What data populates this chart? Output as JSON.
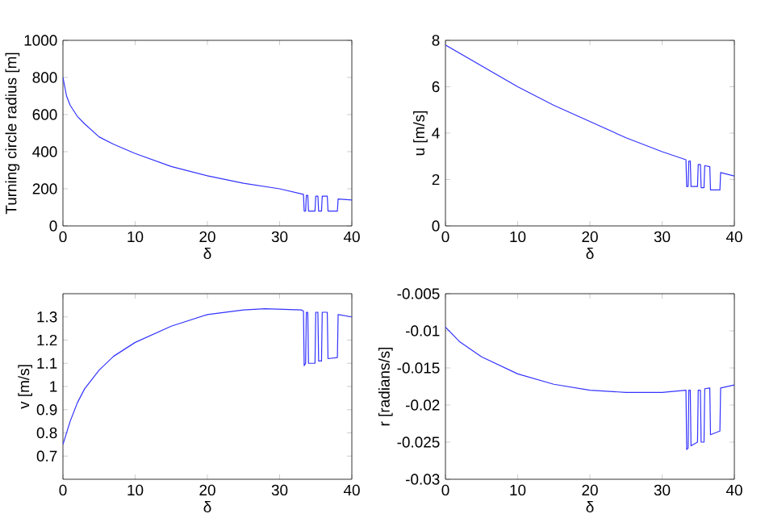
{
  "chart_data": [
    {
      "type": "line",
      "ylabel": "Turning circle radius [m]",
      "xlabel": "δ",
      "xlim": [
        0,
        40
      ],
      "xticks": [
        0,
        10,
        20,
        30,
        40
      ],
      "ylim": [
        0,
        1000
      ],
      "yticks": [
        0,
        200,
        400,
        600,
        800,
        1000
      ],
      "marker": "none",
      "line_style": "solid",
      "series": [
        {
          "color": "#3333ff",
          "x": [
            0,
            0.5,
            1,
            2,
            3,
            5,
            7,
            10,
            15,
            20,
            25,
            30,
            33.3,
            33.4,
            33.6,
            33.7,
            33.9,
            34,
            34.9,
            35,
            35.3,
            35.4,
            35.8,
            35.9,
            36.6,
            36.7,
            38,
            38.1,
            40
          ],
          "values": [
            800,
            700,
            650,
            590,
            550,
            480,
            440,
            390,
            320,
            270,
            230,
            200,
            170,
            80,
            80,
            165,
            165,
            80,
            80,
            160,
            160,
            80,
            80,
            160,
            160,
            80,
            80,
            145,
            140
          ]
        }
      ]
    },
    {
      "type": "line",
      "ylabel": "u  [m/s]",
      "xlabel": "δ",
      "xlim": [
        0,
        40
      ],
      "xticks": [
        0,
        10,
        20,
        30,
        40
      ],
      "ylim": [
        0,
        8
      ],
      "yticks": [
        0,
        2,
        4,
        6,
        8
      ],
      "marker": "none",
      "line_style": "solid",
      "series": [
        {
          "color": "#3333ff",
          "x": [
            0,
            5,
            10,
            15,
            20,
            25,
            30,
            33.3,
            33.4,
            33.6,
            33.7,
            33.9,
            34,
            34.9,
            35,
            35.3,
            35.4,
            35.8,
            35.9,
            36.6,
            36.7,
            38,
            38.1,
            40
          ],
          "values": [
            7.8,
            6.9,
            6.0,
            5.2,
            4.5,
            3.8,
            3.2,
            2.85,
            1.7,
            1.7,
            2.8,
            2.8,
            1.7,
            1.7,
            2.65,
            2.65,
            1.65,
            1.65,
            2.6,
            2.55,
            1.55,
            1.55,
            2.3,
            2.15
          ]
        }
      ]
    },
    {
      "type": "line",
      "ylabel": "v  [m/s]",
      "xlabel": "δ",
      "xlim": [
        0,
        40
      ],
      "xticks": [
        0,
        10,
        20,
        30,
        40
      ],
      "ylim": [
        0.6,
        1.4
      ],
      "yticks": [
        0.7,
        0.8,
        0.9,
        1,
        1.1,
        1.2,
        1.3
      ],
      "marker": "none",
      "line_style": "solid",
      "series": [
        {
          "color": "#3333ff",
          "x": [
            0,
            1,
            2,
            3,
            5,
            7,
            10,
            15,
            20,
            25,
            28,
            33,
            33.3,
            33.4,
            33.6,
            33.7,
            33.9,
            34,
            34.9,
            35,
            35.3,
            35.4,
            35.8,
            35.9,
            36.6,
            36.7,
            38,
            38.1,
            40
          ],
          "values": [
            0.75,
            0.85,
            0.93,
            0.99,
            1.07,
            1.13,
            1.19,
            1.26,
            1.31,
            1.33,
            1.335,
            1.33,
            1.325,
            1.09,
            1.1,
            1.32,
            1.32,
            1.1,
            1.1,
            1.32,
            1.32,
            1.11,
            1.11,
            1.32,
            1.32,
            1.12,
            1.125,
            1.31,
            1.3
          ]
        }
      ]
    },
    {
      "type": "line",
      "ylabel": "r  [radians/s]",
      "xlabel": "δ",
      "xlim": [
        0,
        40
      ],
      "xticks": [
        0,
        10,
        20,
        30,
        40
      ],
      "ylim": [
        -0.03,
        -0.005
      ],
      "yticks": [
        -0.03,
        -0.025,
        -0.02,
        -0.015,
        -0.01,
        -0.005
      ],
      "marker": "none",
      "line_style": "solid",
      "series": [
        {
          "color": "#3333ff",
          "x": [
            0,
            2,
            5,
            10,
            15,
            20,
            25,
            30,
            33.3,
            33.4,
            33.6,
            33.7,
            33.9,
            34,
            34.9,
            35,
            35.3,
            35.4,
            35.8,
            35.9,
            36.6,
            36.7,
            38,
            38.1,
            40
          ],
          "values": [
            -0.0095,
            -0.0115,
            -0.0135,
            -0.0158,
            -0.0172,
            -0.018,
            -0.0183,
            -0.0183,
            -0.018,
            -0.026,
            -0.0258,
            -0.018,
            -0.018,
            -0.0255,
            -0.025,
            -0.018,
            -0.018,
            -0.025,
            -0.025,
            -0.0178,
            -0.0177,
            -0.024,
            -0.0235,
            -0.0177,
            -0.0173
          ]
        }
      ]
    }
  ]
}
